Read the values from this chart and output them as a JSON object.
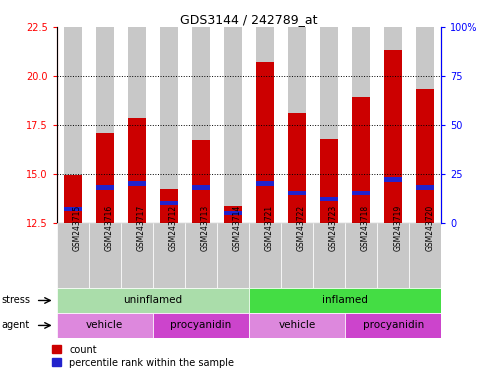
{
  "title": "GDS3144 / 242789_at",
  "samples": [
    "GSM243715",
    "GSM243716",
    "GSM243717",
    "GSM243712",
    "GSM243713",
    "GSM243714",
    "GSM243721",
    "GSM243722",
    "GSM243723",
    "GSM243718",
    "GSM243719",
    "GSM243720"
  ],
  "count_values": [
    14.95,
    17.1,
    17.85,
    14.2,
    16.7,
    13.35,
    20.7,
    18.1,
    16.8,
    18.9,
    21.3,
    19.35
  ],
  "percentile_values": [
    7,
    18,
    20,
    10,
    18,
    5,
    20,
    15,
    12,
    15,
    22,
    18
  ],
  "y_min": 12.5,
  "y_max": 22.5,
  "y_ticks_left": [
    12.5,
    15.0,
    17.5,
    20.0,
    22.5
  ],
  "y_ticks_right": [
    0,
    25,
    50,
    75,
    100
  ],
  "bar_color_red": "#cc0000",
  "bar_color_blue": "#2222cc",
  "bg_color": "#c8c8c8",
  "stress_uninflamed_color": "#aaddaa",
  "stress_inflamed_color": "#44dd44",
  "agent_vehicle_color": "#dd88dd",
  "agent_procyanidin_color": "#cc44cc",
  "stress_groups": [
    {
      "label": "uninflamed",
      "start": 0,
      "end": 6
    },
    {
      "label": "inflamed",
      "start": 6,
      "end": 12
    }
  ],
  "agent_groups": [
    {
      "label": "vehicle",
      "start": 0,
      "end": 3
    },
    {
      "label": "procyanidin",
      "start": 3,
      "end": 6
    },
    {
      "label": "vehicle",
      "start": 6,
      "end": 9
    },
    {
      "label": "procyanidin",
      "start": 9,
      "end": 12
    }
  ],
  "legend_count_label": "count",
  "legend_percentile_label": "percentile rank within the sample",
  "stress_label": "stress",
  "agent_label": "agent"
}
